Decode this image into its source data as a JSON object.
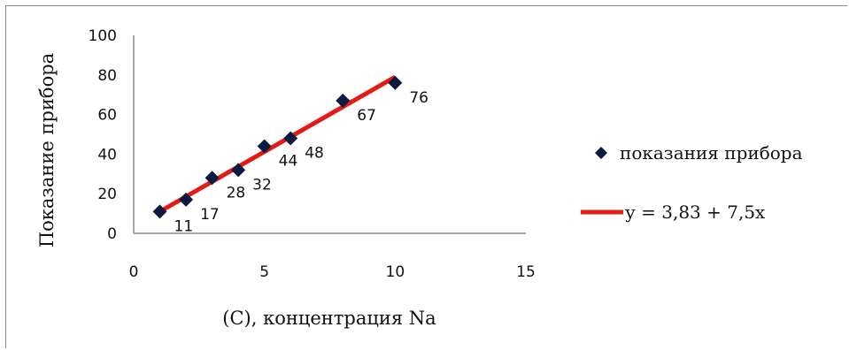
{
  "chart_data": {
    "type": "scatter",
    "title": "",
    "xlabel": "(С), концентрация Na",
    "ylabel": "Показание прибора",
    "xlim": [
      0,
      15
    ],
    "ylim": [
      0,
      100
    ],
    "x_ticks": [
      "0",
      "5",
      "10",
      "15"
    ],
    "y_ticks": [
      "0",
      "20",
      "40",
      "60",
      "80",
      "100"
    ],
    "grid": false,
    "legend_position": "right",
    "series": [
      {
        "name": "показания прибора",
        "marker": "diamond",
        "color": "#0d1a40",
        "points": [
          {
            "x": 1,
            "y": 11,
            "label": "11"
          },
          {
            "x": 2,
            "y": 17,
            "label": "17"
          },
          {
            "x": 3,
            "y": 28,
            "label": "28"
          },
          {
            "x": 4,
            "y": 32,
            "label": "32"
          },
          {
            "x": 5,
            "y": 44,
            "label": "44"
          },
          {
            "x": 6,
            "y": 48,
            "label": "48"
          },
          {
            "x": 8,
            "y": 67,
            "label": "67"
          },
          {
            "x": 10,
            "y": 76,
            "label": "76"
          }
        ]
      }
    ],
    "trendline": {
      "name": "у = 3,83 + 7,5х",
      "color": "#e31b17",
      "x_start": 1,
      "x_end": 10,
      "y_start": 11,
      "y_end": 79
    }
  }
}
